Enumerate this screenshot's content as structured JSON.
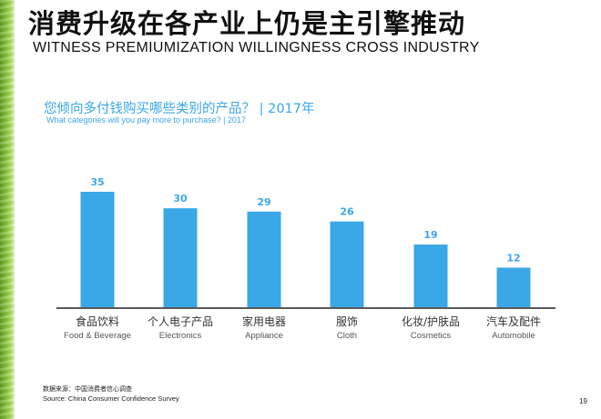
{
  "slide": {
    "title_cn": "消费升级在各产业上仍是主引擎推动",
    "title_en": "WITNESS PREMIUMIZATION WILLINGNESS CROSS INDUSTRY",
    "subtitle_cn": "您倾向多付钱购买哪些类别的产品？ |  2017年",
    "subtitle_en": "What categories will you pay more to purchase? | 2017",
    "source_cn": "数据来源：中国消费者信心调查",
    "source_en": "Source: China Consumer Confidence Survey",
    "page_number": "19"
  },
  "colors": {
    "bar": "#3aa7e6",
    "label": "#3aa7e6",
    "baseline": "#595959",
    "category_cn": "#333333",
    "category_en": "#555555"
  },
  "chart_data": {
    "type": "bar",
    "title": "What categories will you pay more to purchase? | 2017",
    "categories": [
      "食品饮料",
      "个人电子产品",
      "家用电器",
      "服饰",
      "化妆/护肤品",
      "汽车及配件"
    ],
    "categories_en": [
      "Food & Beverage",
      "Electronics",
      "Appliance",
      "Cloth",
      "Cosmetics",
      "Automobile"
    ],
    "values": [
      35,
      30,
      29,
      26,
      19,
      12
    ],
    "ylim": [
      0,
      35
    ],
    "grid": false,
    "data_labels": true
  }
}
